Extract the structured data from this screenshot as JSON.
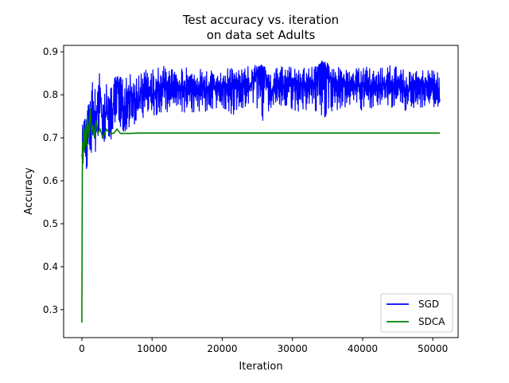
{
  "chart_data": {
    "type": "line",
    "title_lines": [
      "Test accuracy vs. iteration",
      "on data set Adults"
    ],
    "xlabel": "Iteration",
    "ylabel": "Accuracy",
    "xlim": [
      -2600,
      53600
    ],
    "ylim": [
      0.235,
      0.915
    ],
    "xticks": [
      0,
      10000,
      20000,
      30000,
      40000,
      50000
    ],
    "yticks": [
      0.3,
      0.4,
      0.5,
      0.6,
      0.7,
      0.8,
      0.9
    ],
    "grid": false,
    "legend_position": "bottom-right",
    "series": [
      {
        "name": "SGD",
        "color": "#0000ff",
        "x": [
          0,
          100,
          200,
          300,
          500,
          700,
          900,
          1200,
          1500,
          2000,
          2500,
          3000,
          3500,
          4000,
          5000,
          6000,
          7000,
          8000,
          9000,
          10000,
          12000,
          14000,
          16000,
          18000,
          20000,
          22000,
          24000,
          25600,
          27000,
          29000,
          31000,
          33000,
          34200,
          36000,
          38000,
          40000,
          42000,
          44000,
          46000,
          48000,
          50000,
          51000
        ],
        "values": [
          0.66,
          0.73,
          0.67,
          0.72,
          0.68,
          0.61,
          0.75,
          0.69,
          0.79,
          0.71,
          0.85,
          0.7,
          0.76,
          0.72,
          0.83,
          0.74,
          0.81,
          0.77,
          0.84,
          0.8,
          0.83,
          0.81,
          0.82,
          0.81,
          0.82,
          0.83,
          0.82,
          0.87,
          0.81,
          0.82,
          0.83,
          0.82,
          0.88,
          0.82,
          0.83,
          0.82,
          0.82,
          0.83,
          0.81,
          0.82,
          0.83,
          0.79
        ],
        "band_low": [
          0.64,
          0.66,
          0.62,
          0.65,
          0.63,
          0.61,
          0.66,
          0.65,
          0.68,
          0.66,
          0.69,
          0.67,
          0.7,
          0.69,
          0.72,
          0.71,
          0.73,
          0.73,
          0.74,
          0.74,
          0.75,
          0.76,
          0.75,
          0.76,
          0.76,
          0.75,
          0.76,
          0.73,
          0.76,
          0.77,
          0.76,
          0.76,
          0.74,
          0.76,
          0.77,
          0.76,
          0.77,
          0.77,
          0.76,
          0.77,
          0.77,
          0.77
        ],
        "band_high": [
          0.7,
          0.74,
          0.72,
          0.75,
          0.78,
          0.75,
          0.79,
          0.8,
          0.83,
          0.81,
          0.85,
          0.83,
          0.84,
          0.83,
          0.85,
          0.84,
          0.85,
          0.85,
          0.86,
          0.86,
          0.87,
          0.86,
          0.87,
          0.86,
          0.87,
          0.86,
          0.87,
          0.87,
          0.86,
          0.87,
          0.86,
          0.87,
          0.88,
          0.87,
          0.86,
          0.87,
          0.86,
          0.87,
          0.86,
          0.86,
          0.86,
          0.85
        ]
      },
      {
        "name": "SDCA",
        "color": "#008000",
        "x": [
          0,
          30,
          60,
          100,
          150,
          250,
          350,
          500,
          650,
          800,
          1000,
          1200,
          1400,
          1600,
          1800,
          2000,
          2300,
          2600,
          3000,
          3500,
          4000,
          4500,
          5000,
          5500,
          6000,
          7000,
          8000,
          20000,
          35000,
          51000
        ],
        "values": [
          0.27,
          0.43,
          0.61,
          0.69,
          0.64,
          0.72,
          0.67,
          0.73,
          0.68,
          0.75,
          0.7,
          0.77,
          0.71,
          0.73,
          0.7,
          0.74,
          0.71,
          0.72,
          0.7,
          0.72,
          0.71,
          0.71,
          0.72,
          0.71,
          0.71,
          0.71,
          0.711,
          0.711,
          0.711,
          0.711
        ]
      }
    ]
  }
}
